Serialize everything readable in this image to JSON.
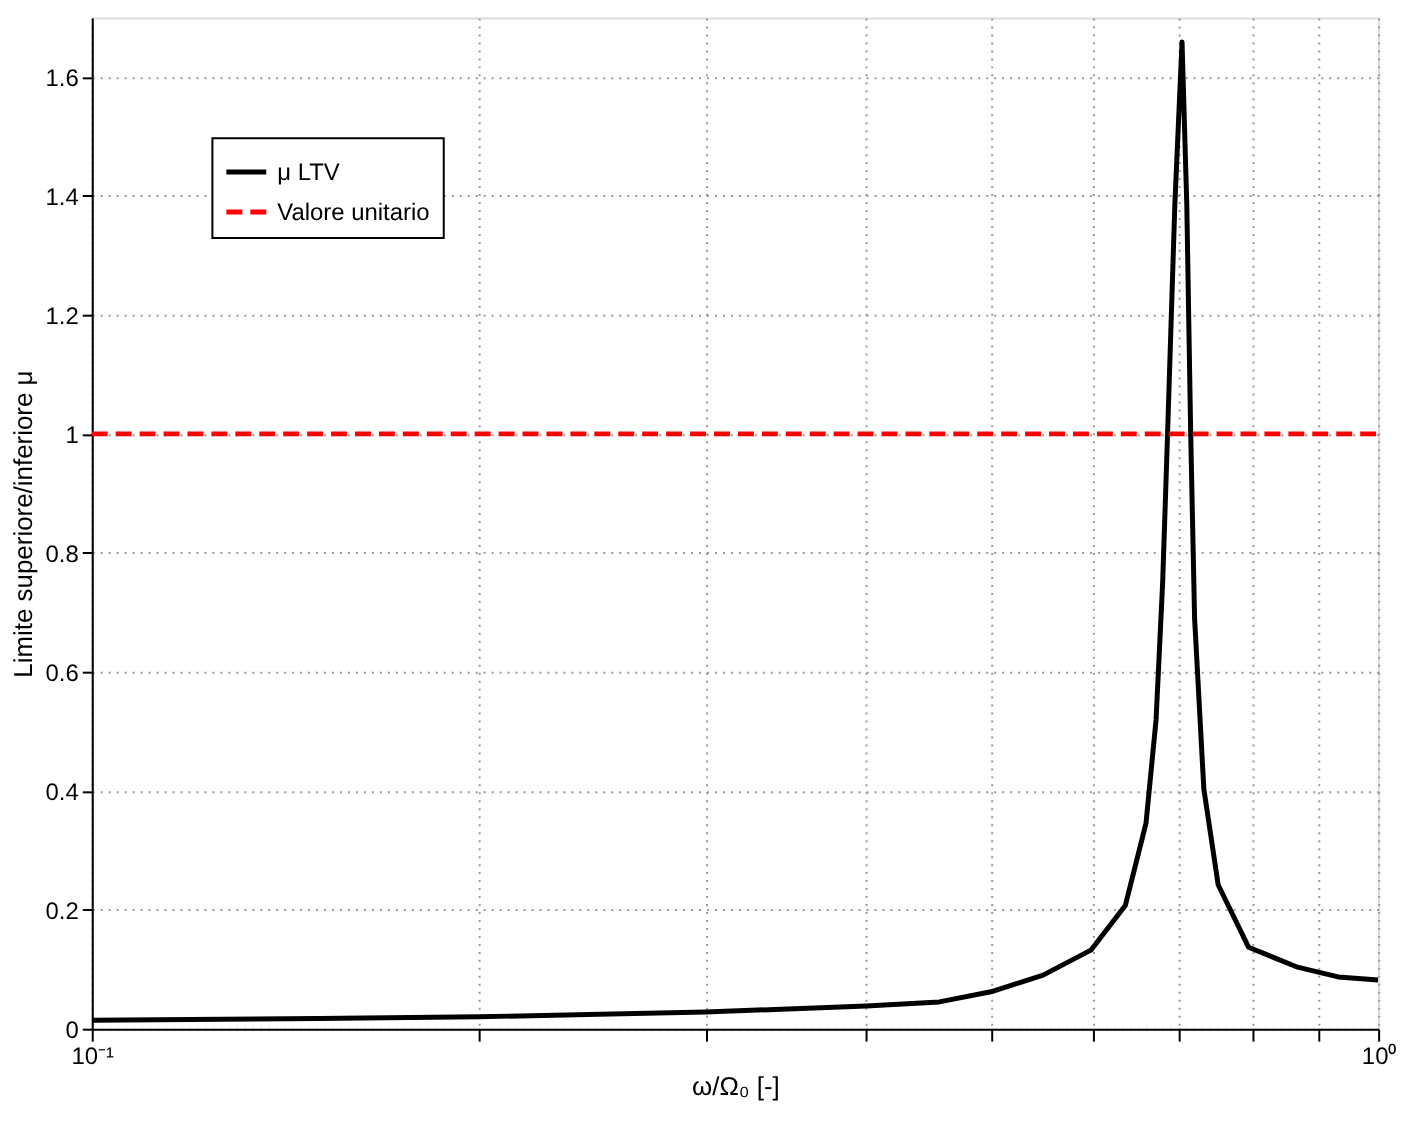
{
  "chart_data": {
    "type": "line",
    "xlabel": "ω/Ω₀ [-]",
    "ylabel": "Limite superiore/inferiore μ",
    "series": [
      {
        "name": "μ LTV",
        "color": "#000000",
        "line_style": "solid",
        "x": [
          0.1,
          0.15,
          0.2,
          0.3,
          0.4,
          0.456,
          0.5,
          0.549,
          0.598,
          0.636,
          0.66,
          0.672,
          0.68,
          0.686,
          0.695,
          0.704,
          0.71,
          0.715,
          0.72,
          0.732,
          0.751,
          0.793,
          0.864,
          0.931,
          1.0
        ],
        "values": [
          0.014,
          0.017,
          0.02,
          0.028,
          0.038,
          0.045,
          0.062,
          0.09,
          0.132,
          0.207,
          0.345,
          0.519,
          0.75,
          1.0,
          1.386,
          1.659,
          1.386,
          1.0,
          0.69,
          0.403,
          0.242,
          0.137,
          0.104,
          0.087,
          0.082
        ]
      },
      {
        "name": "Valore unitario",
        "color": "#ff0000",
        "line_style": "dashed",
        "x": [
          0.1,
          1.0
        ],
        "values": [
          1,
          1
        ]
      }
    ],
    "log": "x",
    "xlim": [
      0.1,
      1
    ],
    "xticks": [
      {
        "value": 0.1,
        "label": "10⁻¹"
      },
      {
        "value": 0.2,
        "label": null
      },
      {
        "value": 0.3,
        "label": null
      },
      {
        "value": 0.4,
        "label": null
      },
      {
        "value": 0.5,
        "label": null
      },
      {
        "value": 0.6,
        "label": null
      },
      {
        "value": 0.7,
        "label": null
      },
      {
        "value": 0.8,
        "label": null
      },
      {
        "value": 0.9,
        "label": null
      },
      {
        "value": 1,
        "label": "10⁰"
      }
    ],
    "ylim": [
      0,
      1.7
    ],
    "yticks": [
      0,
      0.2,
      0.4,
      0.6,
      0.8,
      1,
      1.2,
      1.4,
      1.6
    ],
    "grid": true,
    "legend": "top left"
  }
}
